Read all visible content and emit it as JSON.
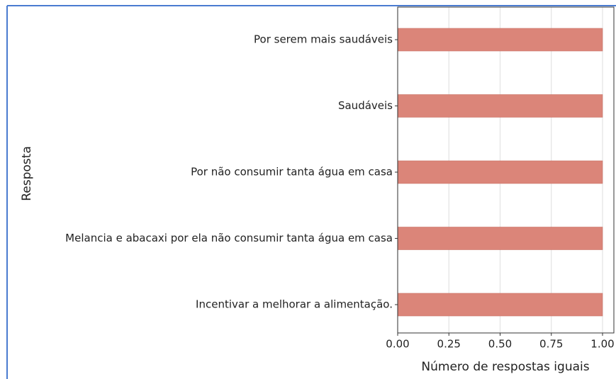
{
  "chart_data": {
    "type": "bar",
    "orientation": "horizontal",
    "categories": [
      "Por serem mais saudáveis",
      "Saudáveis",
      "Por não consumir tanta água em casa",
      "Melancia e abacaxi por ela não consumir tanta água em casa",
      "Incentivar a melhorar a alimentação."
    ],
    "values": [
      1,
      1,
      1,
      1,
      1
    ],
    "color": "#db8579",
    "xlabel": "Número de respostas iguais",
    "ylabel": "Resposta",
    "xlim": [
      0,
      1
    ],
    "xticks": [
      {
        "value": 0,
        "label": "0.00"
      },
      {
        "value": 0.25,
        "label": "0.25"
      },
      {
        "value": 0.5,
        "label": "0.50"
      },
      {
        "value": 0.75,
        "label": "0.75"
      },
      {
        "value": 1,
        "label": "1.00"
      }
    ],
    "grid": true
  }
}
